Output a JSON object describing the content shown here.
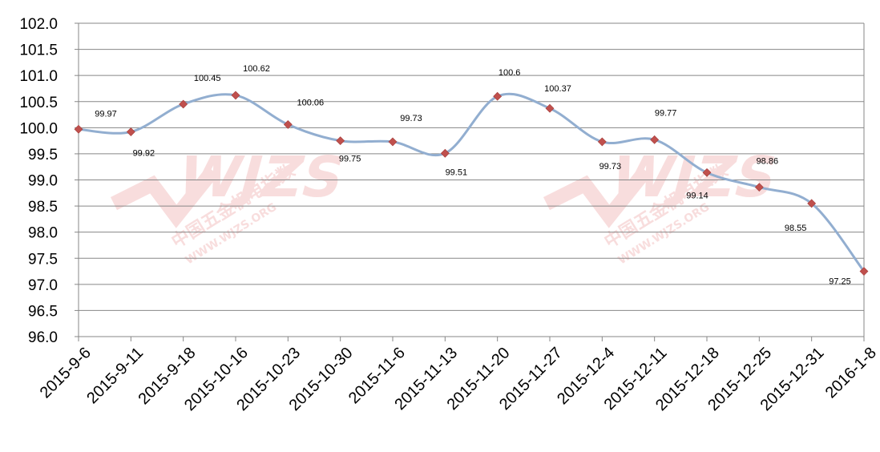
{
  "chart_data": {
    "type": "line",
    "title": "",
    "xlabel": "",
    "ylabel": "",
    "categories": [
      "2015-9-6",
      "2015-9-11",
      "2015-9-18",
      "2015-10-16",
      "2015-10-23",
      "2015-10-30",
      "2015-11-6",
      "2015-11-13",
      "2015-11-20",
      "2015-11-27",
      "2015-12-4",
      "2015-12-11",
      "2015-12-18",
      "2015-12-25",
      "2015-12-31",
      "2016-1-8"
    ],
    "values": [
      99.97,
      99.92,
      100.45,
      100.62,
      100.06,
      99.75,
      99.73,
      99.51,
      100.6,
      100.37,
      99.73,
      99.77,
      99.14,
      98.86,
      98.55,
      97.25
    ],
    "data_labels": [
      "99.97",
      "99.92",
      "100.45",
      "100.62",
      "100.06",
      "99.75",
      "99.73",
      "99.51",
      "100.6",
      "100.37",
      "99.73",
      "99.77",
      "99.14",
      "98.86",
      "98.55",
      "97.25"
    ],
    "ylim": [
      96.0,
      102.0
    ],
    "yticks": [
      "96.0",
      "96.5",
      "97.0",
      "97.5",
      "98.0",
      "98.5",
      "99.0",
      "99.5",
      "100.0",
      "100.5",
      "101.0",
      "101.5",
      "102.0"
    ],
    "grid": true,
    "smooth": true,
    "line_color": "#92aed0",
    "marker_color": "#c0504d",
    "marker": "diamond"
  },
  "watermark": {
    "logo": "WJZS",
    "name": "中国五金机电指数",
    "url": "WWW.WJZS.ORG",
    "color": "#f0c9c9"
  }
}
